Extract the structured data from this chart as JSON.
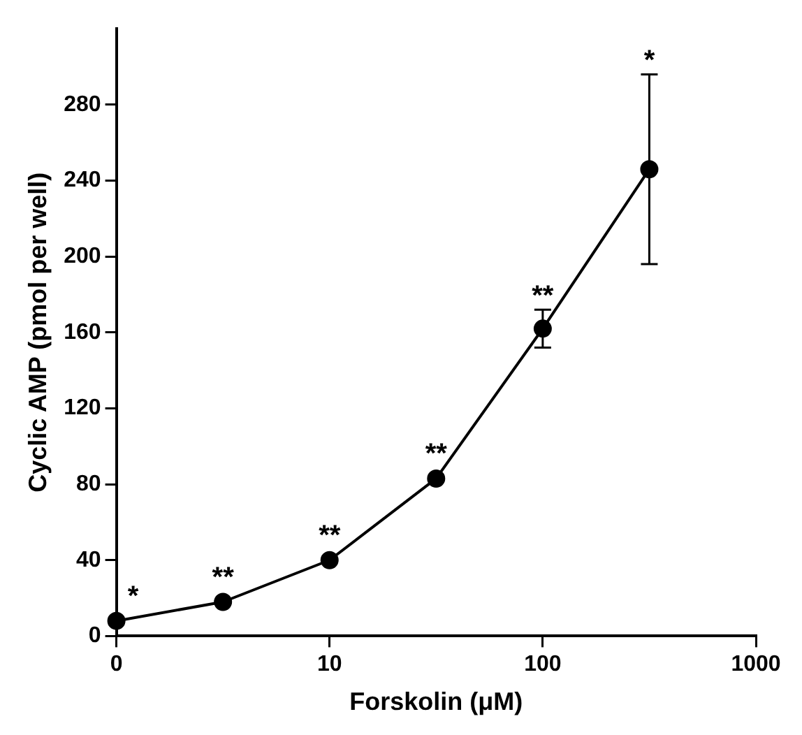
{
  "chart_data": {
    "type": "line",
    "xlabel": "Forskolin (μM)",
    "ylabel": "Cyclic AMP (pmol per well)",
    "categories": [
      "0",
      null,
      "10",
      null,
      "100",
      null,
      "1000"
    ],
    "series": [
      {
        "color": "#000000",
        "values": [
          8,
          18,
          40,
          83,
          162,
          246,
          null
        ],
        "errors": [
          null,
          null,
          null,
          null,
          10,
          50,
          null
        ]
      }
    ],
    "ylim": [
      0,
      320
    ],
    "yticks": [
      0,
      40,
      80,
      120,
      160,
      200,
      240,
      280
    ],
    "marker": "circle",
    "line_style": "solid",
    "annotations": [
      "*",
      "**",
      "**",
      "**",
      "**",
      "*"
    ]
  }
}
